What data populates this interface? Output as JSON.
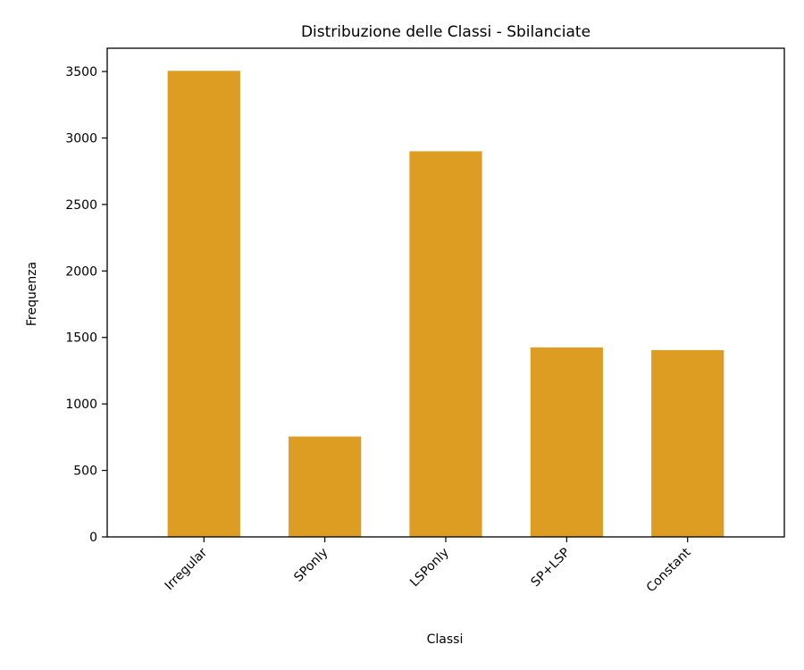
{
  "chart_data": {
    "type": "bar",
    "title": "Distribuzione delle Classi - Sbilanciate",
    "xlabel": "Classi",
    "ylabel": "Frequenza",
    "categories": [
      "Irregular",
      "SPonly",
      "LSPonly",
      "SP+LSP",
      "Constant"
    ],
    "values": [
      3505,
      755,
      2900,
      1425,
      1405
    ],
    "ylim": [
      0,
      3675
    ],
    "yticks": [
      0,
      500,
      1000,
      1500,
      2000,
      2500,
      3000,
      3500
    ],
    "bar_color": "#dd9d23",
    "grid": false,
    "legend": "none"
  }
}
